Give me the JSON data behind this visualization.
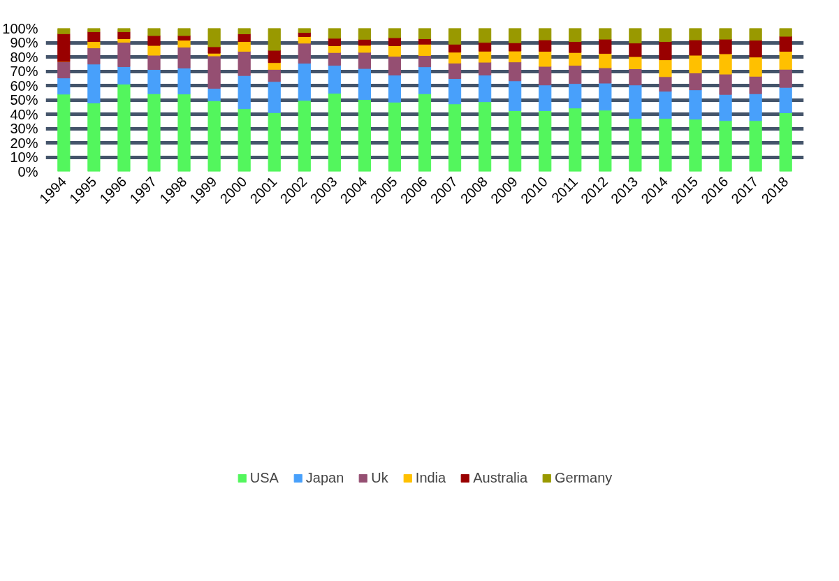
{
  "chart_data": {
    "type": "bar",
    "stacked": true,
    "categories": [
      "1994",
      "1995",
      "1996",
      "1997",
      "1998",
      "1999",
      "2000",
      "2001",
      "2002",
      "2003",
      "2004",
      "2005",
      "2006",
      "2007",
      "2008",
      "2009",
      "2010",
      "2011",
      "2012",
      "2013",
      "2014",
      "2015",
      "2016",
      "2017",
      "2018"
    ],
    "series": [
      {
        "name": "USA",
        "color": "#53f65d",
        "values": [
          54,
          47.8,
          61,
          54.3,
          54.1,
          49.4,
          43.8,
          41.1,
          49.6,
          54.6,
          50.2,
          48.4,
          54.3,
          47.2,
          48.7,
          42.5,
          42.5,
          44.3,
          42.8,
          37,
          37,
          36.5,
          35.5,
          35.5,
          41
        ]
      },
      {
        "name": "Japan",
        "color": "#48a0fb",
        "values": [
          11.3,
          27.2,
          12.2,
          16.9,
          18.1,
          8.6,
          23.2,
          21.7,
          26,
          19.5,
          21.7,
          18.9,
          18.8,
          17.7,
          18.6,
          20.8,
          17.9,
          17.1,
          18.9,
          23.4,
          19,
          20.5,
          18.3,
          18.8,
          17.7
        ]
      },
      {
        "name": "Uk",
        "color": "#954f72",
        "values": [
          11.5,
          11.3,
          17,
          10,
          14.6,
          22.7,
          16.9,
          8.5,
          14,
          9,
          11.3,
          13.1,
          7.9,
          10.8,
          9,
          13.2,
          13,
          12.7,
          10.7,
          11.3,
          10.2,
          11.8,
          14.2,
          12.2,
          12.7
        ]
      },
      {
        "name": "India",
        "color": "#ffc000",
        "values": [
          0,
          4.4,
          2.5,
          6.8,
          4.9,
          1.9,
          6.8,
          4.7,
          4.6,
          4.7,
          4.9,
          7.4,
          7.9,
          7.6,
          7.7,
          7.6,
          10.5,
          9,
          10,
          8.5,
          11.8,
          12.4,
          14.2,
          13.4,
          12.5
        ]
      },
      {
        "name": "Australia",
        "color": "#990000",
        "values": [
          19.4,
          6.9,
          4.9,
          6.9,
          3.2,
          4.5,
          5.4,
          8.6,
          2.9,
          5.2,
          4.2,
          5.6,
          3.8,
          5.6,
          6.1,
          5.8,
          8,
          7.6,
          10,
          9.5,
          12.7,
          10.7,
          10.2,
          11.8,
          10.5
        ]
      },
      {
        "name": "Germany",
        "color": "#999900",
        "values": [
          3.8,
          2.4,
          2.4,
          5.1,
          5.1,
          12.9,
          3.9,
          15.4,
          2.9,
          7,
          7.7,
          6.6,
          7.3,
          11.1,
          9.9,
          10.1,
          8.1,
          9.3,
          7.6,
          10.3,
          9.3,
          8.1,
          7.6,
          8.3,
          5.6
        ]
      }
    ],
    "ylim": [
      0,
      100
    ],
    "yticks": [
      {
        "value": 0,
        "label": "0%"
      },
      {
        "value": 10,
        "label": "10%"
      },
      {
        "value": 20,
        "label": "20%"
      },
      {
        "value": 30,
        "label": "30%"
      },
      {
        "value": 40,
        "label": "40%"
      },
      {
        "value": 50,
        "label": "50%"
      },
      {
        "value": 60,
        "label": "60%"
      },
      {
        "value": 70,
        "label": "70%"
      },
      {
        "value": 80,
        "label": "80%"
      },
      {
        "value": 90,
        "label": "90%"
      },
      {
        "value": 100,
        "label": "100%"
      }
    ],
    "grid": "y",
    "legend": "bottom"
  }
}
